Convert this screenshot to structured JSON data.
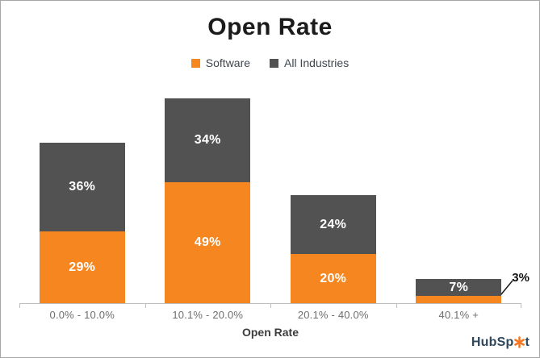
{
  "title": "Open Rate",
  "legend": {
    "items": [
      {
        "label": "Software",
        "color": "#F6861F"
      },
      {
        "label": "All Industries",
        "color": "#525252"
      }
    ]
  },
  "chart_data": {
    "type": "bar",
    "stacked": true,
    "title": "Open Rate",
    "xlabel": "Open Rate",
    "ylabel": "",
    "categories": [
      "0.0% - 10.0%",
      "10.1% - 20.0%",
      "20.1% - 40.0%",
      "40.1% +"
    ],
    "series": [
      {
        "name": "Software",
        "color": "#F6861F",
        "values": [
          29,
          49,
          20,
          3
        ]
      },
      {
        "name": "All Industries",
        "color": "#525252",
        "values": [
          36,
          34,
          24,
          7
        ]
      }
    ],
    "value_suffix": "%",
    "grid": false,
    "legend_position": "top",
    "y_axis_visible": false,
    "annotations": [
      {
        "text": "3%",
        "series": "Software",
        "category": "40.1% +",
        "placement": "outside-right-leader-line"
      }
    ]
  },
  "colors": {
    "software": "#F6861F",
    "all_industries": "#525252",
    "axis": "#BDBDBD",
    "bar_value_label": "#FFFFFF",
    "callout_text": "#111111",
    "logo_text": "#2E475D",
    "logo_sprocket": "#F57722"
  },
  "branding": {
    "logo_name": "HubSpot",
    "logo_text_before_sprocket": "HubSp",
    "logo_text_after_sprocket": "t"
  }
}
